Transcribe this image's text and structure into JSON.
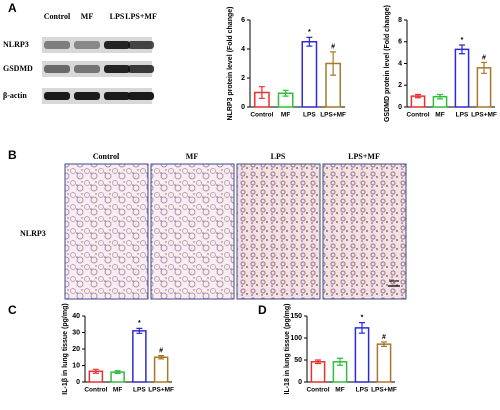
{
  "panel_labels": [
    "A",
    "B",
    "C",
    "D"
  ],
  "blot": {
    "columns": [
      "Control",
      "MF",
      "LPS",
      "LPS+MF"
    ],
    "rows": [
      "NLRP3",
      "GSDMD",
      "β-actin"
    ]
  },
  "histology": {
    "columns": [
      "Control",
      "MF",
      "LPS",
      "LPS+MF"
    ],
    "row": "NLRP3",
    "scale_bar": "50μm"
  },
  "chart_data": [
    {
      "type": "bar",
      "y_label": "NLRP3 protein level (Fold change)",
      "categories": [
        "Control",
        "MF",
        "LPS",
        "LPS+MF"
      ],
      "values": [
        1.0,
        0.95,
        4.5,
        3.0
      ],
      "errors": [
        0.4,
        0.2,
        0.3,
        0.8
      ],
      "markers": [
        null,
        null,
        "*",
        "#"
      ],
      "colors": [
        "#e8312f",
        "#2fbf3a",
        "#2b2bd6",
        "#a8782a"
      ],
      "ylim": [
        0,
        6
      ],
      "yticks": [
        0,
        2,
        4,
        6
      ]
    },
    {
      "type": "bar",
      "y_label": "GSDMD protein level (Fold change)",
      "categories": [
        "Control",
        "MF",
        "LPS",
        "LPS+MF"
      ],
      "values": [
        1.0,
        0.95,
        5.3,
        3.6
      ],
      "errors": [
        0.15,
        0.2,
        0.4,
        0.5
      ],
      "markers": [
        null,
        null,
        "*",
        "#"
      ],
      "colors": [
        "#e8312f",
        "#2fbf3a",
        "#2b2bd6",
        "#a8782a"
      ],
      "ylim": [
        0,
        8
      ],
      "yticks": [
        0,
        2,
        4,
        6,
        8
      ]
    },
    {
      "type": "bar",
      "y_label": "IL-1β in lung tissue (pg/mg)",
      "categories": [
        "Control",
        "MF",
        "LPS",
        "LPS+MF"
      ],
      "values": [
        6.5,
        6,
        31,
        15
      ],
      "errors": [
        1.2,
        0.8,
        1.5,
        1
      ],
      "markers": [
        null,
        null,
        "*",
        "#"
      ],
      "colors": [
        "#e8312f",
        "#2fbf3a",
        "#2b2bd6",
        "#a8782a"
      ],
      "ylim": [
        0,
        40
      ],
      "yticks": [
        0,
        10,
        20,
        30,
        40
      ]
    },
    {
      "type": "bar",
      "y_label": "IL-18 in lung tissue (pg/mg)",
      "categories": [
        "Control",
        "MF",
        "LPS",
        "LPS+MF"
      ],
      "values": [
        46,
        46,
        123,
        86
      ],
      "errors": [
        4,
        8,
        12,
        5
      ],
      "markers": [
        null,
        null,
        "*",
        "#"
      ],
      "colors": [
        "#e8312f",
        "#2fbf3a",
        "#2b2bd6",
        "#a8782a"
      ],
      "ylim": [
        0,
        150
      ],
      "yticks": [
        0,
        50,
        100,
        150
      ]
    }
  ]
}
